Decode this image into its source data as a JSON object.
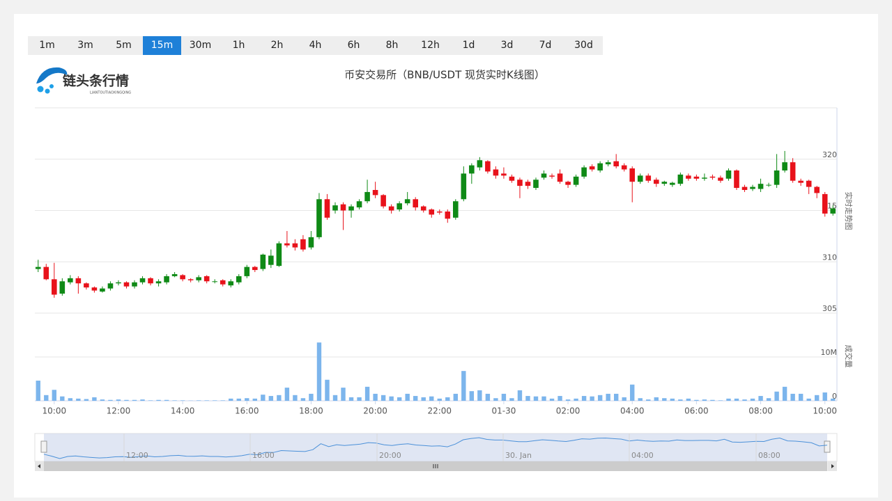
{
  "intervals": [
    "1m",
    "3m",
    "5m",
    "15m",
    "30m",
    "1h",
    "2h",
    "4h",
    "6h",
    "8h",
    "12h",
    "1d",
    "3d",
    "7d",
    "30d"
  ],
  "selected_interval": "15m",
  "logo": {
    "title": "链头条行情",
    "subtitle": "LIANTOUTIAOXINGQING"
  },
  "navigator": {
    "labels": [
      "12:00",
      "16:00",
      "20:00",
      "30. Jan",
      "04:00",
      "08:00"
    ]
  },
  "chart_data": {
    "type": "candlestick",
    "title": "币安交易所（BNB/USDT 现货实时K线图）",
    "y_title": "实时走势图",
    "volume_title": "成交量",
    "categories": [
      null,
      null,
      "10:00",
      null,
      null,
      null,
      null,
      null,
      null,
      null,
      "12:00",
      null,
      null,
      null,
      null,
      null,
      null,
      null,
      "14:00",
      null,
      null,
      null,
      null,
      null,
      null,
      null,
      "16:00",
      null,
      null,
      null,
      null,
      null,
      null,
      null,
      "18:00",
      null,
      null,
      null,
      null,
      null,
      null,
      null,
      "20:00",
      null,
      null,
      null,
      null,
      null,
      null,
      null,
      "22:00",
      null,
      null,
      null,
      null,
      null,
      null,
      null,
      "01-30",
      null,
      null,
      null,
      null,
      null,
      null,
      null,
      "02:00",
      null,
      null,
      null,
      null,
      null,
      null,
      null,
      "04:00",
      null,
      null,
      null,
      null,
      null,
      null,
      null,
      "06:00",
      null,
      null,
      null,
      null,
      null,
      null,
      null,
      "08:00",
      null,
      null,
      null,
      null,
      null,
      null,
      null,
      "10:00",
      null
    ],
    "open": [
      309.3,
      309.5,
      308.3,
      306.9,
      308.0,
      308.4,
      307.9,
      307.5,
      307.1,
      307.4,
      307.9,
      308.0,
      307.6,
      308.0,
      308.4,
      307.9,
      308.0,
      308.6,
      308.7,
      308.3,
      308.2,
      308.6,
      308.1,
      308.2,
      307.7,
      308.0,
      308.6,
      309.5,
      309.3,
      309.7,
      309.6,
      311.8,
      311.8,
      312.2,
      311.4,
      312.4,
      316.1,
      315.0,
      315.6,
      315.0,
      315.3,
      315.9,
      317.0,
      316.5,
      315.4,
      315.1,
      315.7,
      316.1,
      315.4,
      315.1,
      314.9,
      314.9,
      314.3,
      316.1,
      318.6,
      319.2,
      319.8,
      319.0,
      318.6,
      318.3,
      318.0,
      317.8,
      317.2,
      318.2,
      318.4,
      318.6,
      317.8,
      317.5,
      318.3,
      319.3,
      318.9,
      319.5,
      319.8,
      319.4,
      319.1,
      317.8,
      318.4,
      318.0,
      317.6,
      317.5,
      317.6,
      318.4,
      318.3,
      318.1,
      318.3,
      318.2,
      318.1,
      318.9,
      317.3,
      317.1,
      317.1,
      317.5,
      317.5,
      318.9,
      319.7,
      317.9,
      317.9,
      317.3,
      316.6,
      314.7
    ],
    "high": [
      310.2,
      309.8,
      309.9,
      308.4,
      308.7,
      308.6,
      308.0,
      307.6,
      307.6,
      308.1,
      308.2,
      308.1,
      308.2,
      308.6,
      308.5,
      308.3,
      308.8,
      309.0,
      308.8,
      308.4,
      308.7,
      308.7,
      308.3,
      308.3,
      308.3,
      308.8,
      309.7,
      309.6,
      310.8,
      311.2,
      312.0,
      313.0,
      312.2,
      312.6,
      313.0,
      316.7,
      316.6,
      315.8,
      315.8,
      315.6,
      316.1,
      318.0,
      317.8,
      316.6,
      315.6,
      315.9,
      316.8,
      316.3,
      315.5,
      315.2,
      315.1,
      315.1,
      316.1,
      319.3,
      319.6,
      320.2,
      319.9,
      319.3,
      319.2,
      318.5,
      318.2,
      318.0,
      318.2,
      318.9,
      318.6,
      319.0,
      317.9,
      318.5,
      319.4,
      319.5,
      319.8,
      319.9,
      320.5,
      319.6,
      319.3,
      318.6,
      318.6,
      318.2,
      317.9,
      317.8,
      318.7,
      318.6,
      318.5,
      318.6,
      318.5,
      318.4,
      319.1,
      319.0,
      317.5,
      317.5,
      318.1,
      317.7,
      320.5,
      320.8,
      320.1,
      318.1,
      318.0,
      317.4,
      316.8,
      315.5
    ],
    "low": [
      309.0,
      308.2,
      306.5,
      306.7,
      307.8,
      306.9,
      307.3,
      307.0,
      307.0,
      307.2,
      307.7,
      307.4,
      307.4,
      307.8,
      307.7,
      307.6,
      307.8,
      308.5,
      308.1,
      308.0,
      308.0,
      307.9,
      307.9,
      307.6,
      307.5,
      307.8,
      308.4,
      309.0,
      309.1,
      309.4,
      309.5,
      311.4,
      311.1,
      311.0,
      311.2,
      312.2,
      314.1,
      314.7,
      313.1,
      314.3,
      315.1,
      315.7,
      316.2,
      315.2,
      314.7,
      314.9,
      315.5,
      315.0,
      314.8,
      314.3,
      314.6,
      313.8,
      314.1,
      315.9,
      317.6,
      318.9,
      318.6,
      318.1,
      318.1,
      317.7,
      316.2,
      317.1,
      317.0,
      318.0,
      318.1,
      317.6,
      317.2,
      317.3,
      318.1,
      318.8,
      318.7,
      319.3,
      319.1,
      318.8,
      315.8,
      317.6,
      317.7,
      317.3,
      317.4,
      317.3,
      317.4,
      317.9,
      317.9,
      317.9,
      318.0,
      317.7,
      317.9,
      317.0,
      316.8,
      316.9,
      316.8,
      317.3,
      317.2,
      318.7,
      317.7,
      317.4,
      316.6,
      316.2,
      314.4,
      314.5
    ],
    "close": [
      309.5,
      308.3,
      306.8,
      308.1,
      308.4,
      307.9,
      307.5,
      307.2,
      307.4,
      307.9,
      308.0,
      307.6,
      308.0,
      308.4,
      307.9,
      308.1,
      308.6,
      308.8,
      308.3,
      308.2,
      308.5,
      308.1,
      308.1,
      307.8,
      308.1,
      308.6,
      309.5,
      309.2,
      310.7,
      310.6,
      311.8,
      311.6,
      311.4,
      311.2,
      312.4,
      316.1,
      314.3,
      315.5,
      315.0,
      315.4,
      315.9,
      316.8,
      316.5,
      315.4,
      315.0,
      315.7,
      316.1,
      315.3,
      315.0,
      314.6,
      314.8,
      314.2,
      315.9,
      318.6,
      319.4,
      319.9,
      318.8,
      318.4,
      318.4,
      317.9,
      317.4,
      317.4,
      318.0,
      318.6,
      318.3,
      317.8,
      317.5,
      318.3,
      319.2,
      319.0,
      319.6,
      319.7,
      319.3,
      319.0,
      317.8,
      318.4,
      317.9,
      317.6,
      317.8,
      317.7,
      318.5,
      318.1,
      318.1,
      318.2,
      318.2,
      317.9,
      318.9,
      317.2,
      317.0,
      317.3,
      317.6,
      317.5,
      318.9,
      319.7,
      317.9,
      317.7,
      317.3,
      316.7,
      314.7,
      315.2
    ],
    "volume": [
      4600000,
      1300000,
      2500000,
      1000000,
      600000,
      500000,
      400000,
      800000,
      300000,
      200000,
      300000,
      200000,
      200000,
      300000,
      100000,
      200000,
      200000,
      100000,
      100000,
      50000,
      100000,
      100000,
      100000,
      100000,
      500000,
      500000,
      600000,
      500000,
      1400000,
      1100000,
      1300000,
      3000000,
      1300000,
      600000,
      1600000,
      13300000,
      4800000,
      1300000,
      3000000,
      800000,
      800000,
      3200000,
      1600000,
      1300000,
      1000000,
      800000,
      1600000,
      1100000,
      800000,
      1000000,
      500000,
      800000,
      1600000,
      6800000,
      2200000,
      2400000,
      1600000,
      600000,
      1600000,
      600000,
      2400000,
      1100000,
      1000000,
      1000000,
      500000,
      1100000,
      300000,
      500000,
      1100000,
      1000000,
      1300000,
      1600000,
      1600000,
      800000,
      3700000,
      600000,
      300000,
      800000,
      600000,
      500000,
      300000,
      500000,
      200000,
      300000,
      200000,
      100000,
      500000,
      500000,
      300000,
      500000,
      1100000,
      600000,
      2100000,
      3200000,
      1600000,
      1600000,
      500000,
      1300000,
      1900000,
      500000
    ],
    "up_color": "#0f8a16",
    "down_color": "#e8121b",
    "volume_color": "#7cb5ec",
    "ylim": [
      305,
      325
    ],
    "yticks": [
      305,
      310,
      315,
      320
    ],
    "volume_ylim": [
      0,
      20000000
    ],
    "volume_yticks": [
      0,
      {
        "value": 10000000,
        "label": "10M"
      }
    ],
    "grid": true
  }
}
